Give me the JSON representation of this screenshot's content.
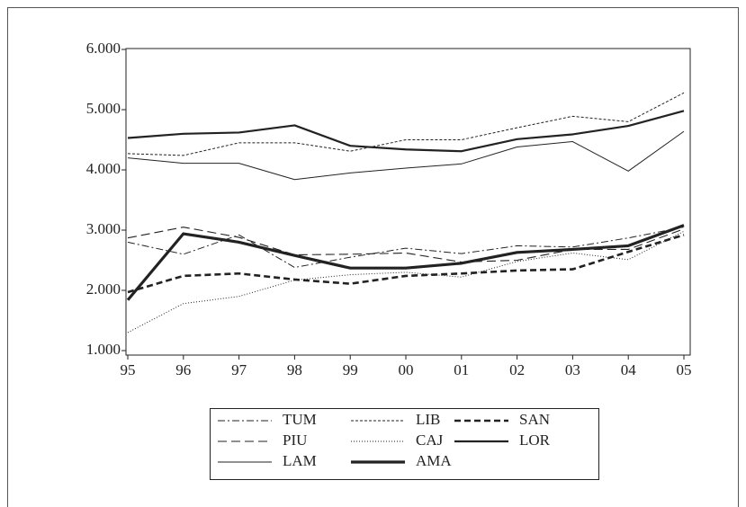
{
  "chart_data": {
    "type": "line",
    "categories": [
      "95",
      "96",
      "97",
      "98",
      "99",
      "00",
      "01",
      "02",
      "03",
      "04",
      "05"
    ],
    "ylim": [
      1000,
      6000
    ],
    "yticks": [
      {
        "value": 1000,
        "label": "1.000"
      },
      {
        "value": 2000,
        "label": "2.000"
      },
      {
        "value": 3000,
        "label": "3.000"
      },
      {
        "value": 4000,
        "label": "4.000"
      },
      {
        "value": 5000,
        "label": "5.000"
      },
      {
        "value": 6000,
        "label": "6.000"
      }
    ],
    "color": "#222222",
    "series": [
      {
        "name": "TUM",
        "style": "dash-dot",
        "values": [
          2800,
          2600,
          2920,
          2380,
          2550,
          2700,
          2610,
          2740,
          2720,
          2870,
          3050
        ]
      },
      {
        "name": "LIB",
        "style": "short-dash",
        "values": [
          4270,
          4240,
          4450,
          4450,
          4310,
          4500,
          4500,
          4700,
          4890,
          4800,
          5280
        ]
      },
      {
        "name": "SAN",
        "style": "bold-dash",
        "values": [
          1970,
          2240,
          2280,
          2180,
          2110,
          2240,
          2280,
          2330,
          2350,
          2640,
          2920
        ]
      },
      {
        "name": "PIU",
        "style": "long-dash",
        "values": [
          2870,
          3050,
          2880,
          2590,
          2600,
          2620,
          2470,
          2500,
          2680,
          2680,
          3020
        ]
      },
      {
        "name": "CAJ",
        "style": "dot",
        "values": [
          1300,
          1780,
          1900,
          2170,
          2260,
          2300,
          2220,
          2480,
          2620,
          2510,
          2980
        ]
      },
      {
        "name": "LOR",
        "style": "medium",
        "values": [
          4530,
          4600,
          4620,
          4740,
          4400,
          4340,
          4310,
          4510,
          4590,
          4730,
          4980
        ]
      },
      {
        "name": "LAM",
        "style": "thin",
        "values": [
          4200,
          4110,
          4110,
          3840,
          3950,
          4030,
          4100,
          4380,
          4470,
          3980,
          4640
        ]
      },
      {
        "name": "AMA",
        "style": "bold",
        "values": [
          1840,
          2940,
          2800,
          2580,
          2370,
          2370,
          2450,
          2630,
          2680,
          2740,
          3080
        ]
      }
    ]
  }
}
